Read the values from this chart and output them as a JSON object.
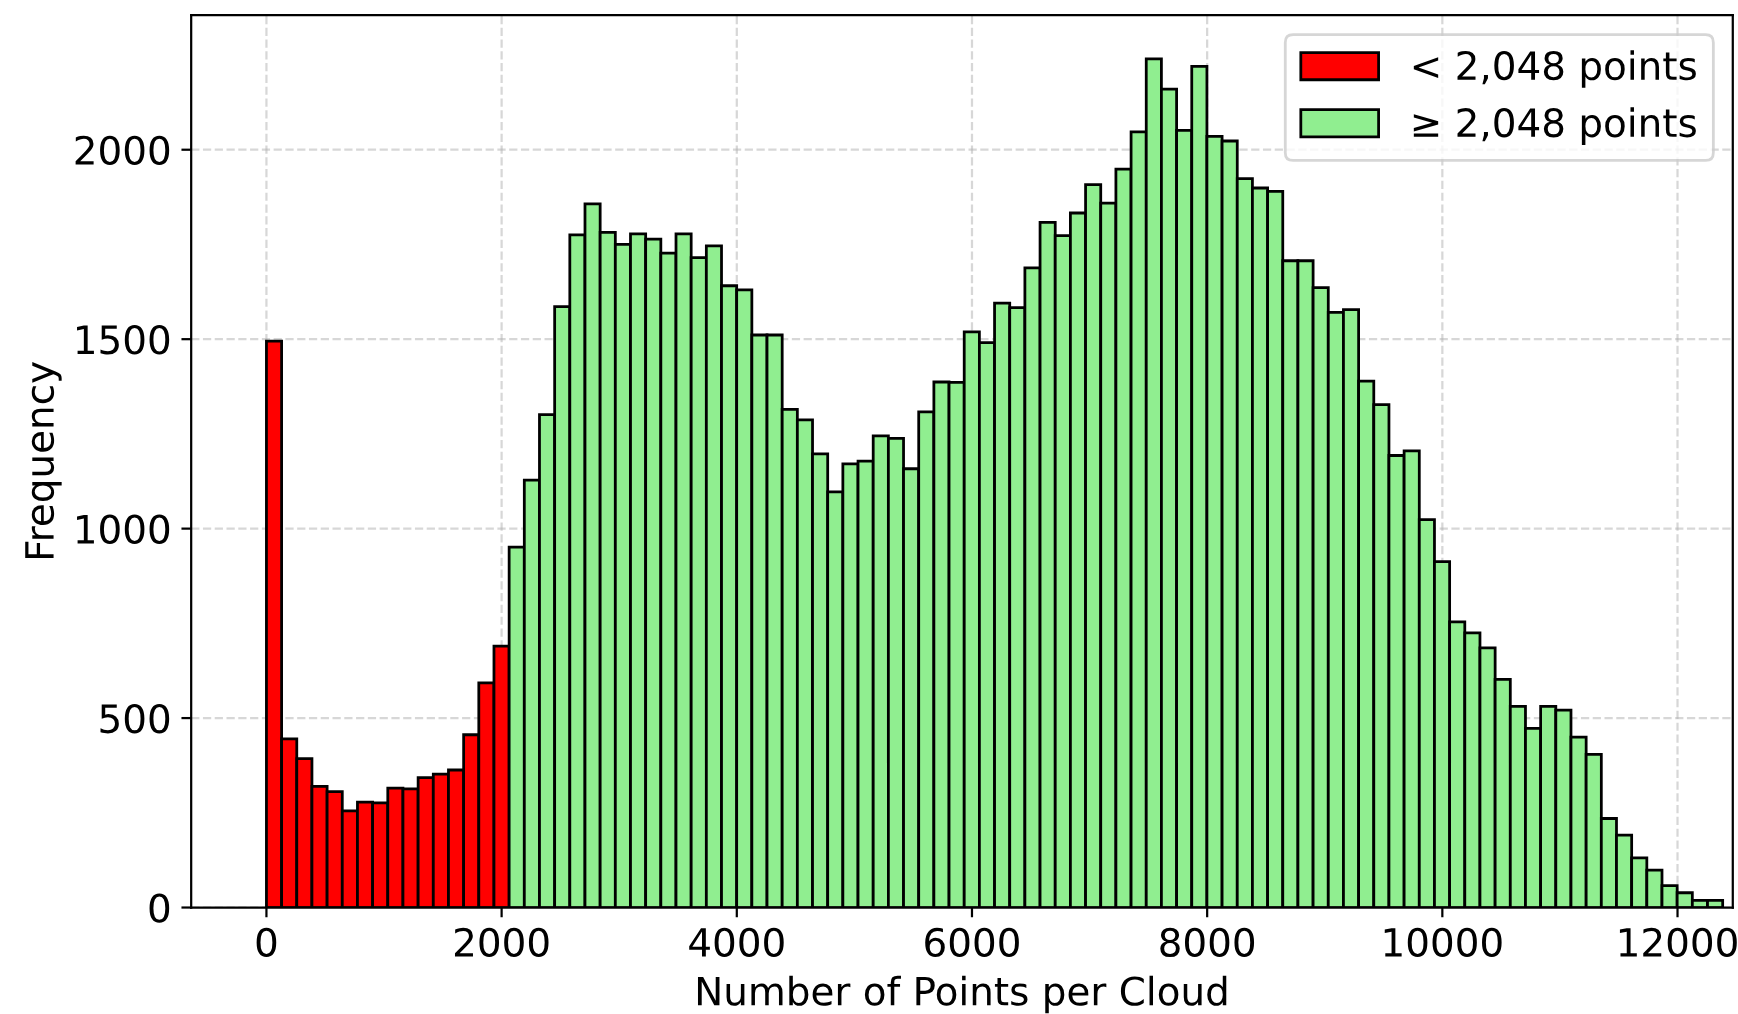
{
  "chart_data": {
    "type": "histogram",
    "xlabel": "Number of Points per Cloud",
    "ylabel": "Frequency",
    "bins": [
      0,
      129,
      258,
      387,
      516,
      645,
      774,
      903,
      1032,
      1161,
      1290,
      1419,
      1548,
      1677,
      1806,
      1935,
      2064,
      2193,
      2322,
      2451,
      2580,
      2709,
      2838,
      2967,
      3096,
      3225,
      3354,
      3483,
      3612,
      3741,
      3870,
      3999,
      4128,
      4257,
      4386,
      4515,
      4644,
      4773,
      4902,
      5031,
      5160,
      5289,
      5418,
      5547,
      5676,
      5805,
      5934,
      6063,
      6192,
      6321,
      6450,
      6579,
      6708,
      6837,
      6966,
      7095,
      7224,
      7353,
      7482,
      7611,
      7740,
      7869,
      7998,
      8127,
      8256,
      8385,
      8514,
      8643,
      8772,
      8901,
      9030,
      9159,
      9288,
      9417,
      9546,
      9675,
      9804,
      9933,
      10062,
      10191,
      10320,
      10449,
      10578,
      10707,
      10836,
      10965,
      11094,
      11223,
      11352,
      11481,
      11610,
      11739,
      11868,
      11997,
      12126,
      12255,
      12384
    ],
    "series": [
      {
        "name": "< 2,048 points",
        "color": "#ff0000",
        "values": [
          1495,
          445,
          393,
          320,
          306,
          255,
          278,
          276,
          315,
          313,
          343,
          352,
          363,
          456,
          593,
          690,
          null,
          null,
          null,
          null,
          null,
          null,
          null,
          null,
          null,
          null,
          null,
          null,
          null,
          null,
          null,
          null,
          null,
          null,
          null,
          null,
          null,
          null,
          null,
          null,
          null,
          null,
          null,
          null,
          null,
          null,
          null,
          null,
          null,
          null,
          null,
          null,
          null,
          null,
          null,
          null,
          null,
          null,
          null,
          null,
          null,
          null,
          null,
          null,
          null,
          null,
          null,
          null,
          null,
          null,
          null,
          null,
          null,
          null,
          null,
          null,
          null,
          null,
          null,
          null,
          null,
          null,
          null,
          null,
          null,
          null,
          null,
          null,
          null,
          null,
          null,
          null,
          null,
          null,
          null,
          null
        ]
      },
      {
        "name": "≥ 2,048 points",
        "color": "#90ee90",
        "values": [
          null,
          null,
          null,
          null,
          null,
          null,
          null,
          null,
          null,
          null,
          null,
          null,
          null,
          null,
          null,
          null,
          951,
          1128,
          1301,
          1586,
          1775,
          1857,
          1782,
          1750,
          1778,
          1764,
          1727,
          1778,
          1715,
          1746,
          1641,
          1630,
          1511,
          1511,
          1315,
          1287,
          1197,
          1097,
          1171,
          1178,
          1245,
          1238,
          1158,
          1308,
          1387,
          1386,
          1519,
          1491,
          1595,
          1583,
          1688,
          1808,
          1773,
          1833,
          1908,
          1859,
          1949,
          2047,
          2240,
          2160,
          2051,
          2220,
          2035,
          2023,
          1924,
          1899,
          1890,
          1707,
          1707,
          1636,
          1571,
          1578,
          1389,
          1327,
          1193,
          1205,
          1024,
          913,
          754,
          725,
          685,
          602,
          531,
          473,
          531,
          521,
          450,
          404,
          235,
          191,
          131,
          99,
          58,
          39,
          19,
          19
        ]
      }
    ],
    "xlim": [
      -640,
      12470
    ],
    "ylim": [
      0,
      2355
    ],
    "xticks": [
      0,
      2000,
      4000,
      6000,
      8000,
      10000,
      12000
    ],
    "yticks": [
      0,
      500,
      1000,
      1500,
      2000
    ],
    "grid": true,
    "legend": "top right"
  }
}
